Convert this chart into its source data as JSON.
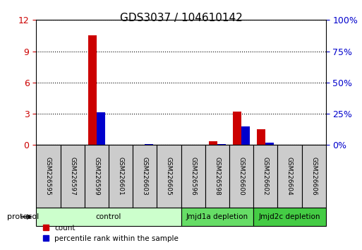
{
  "title": "GDS3037 / 104610142",
  "samples": [
    "GSM226595",
    "GSM226597",
    "GSM226599",
    "GSM226601",
    "GSM226603",
    "GSM226605",
    "GSM226596",
    "GSM226598",
    "GSM226600",
    "GSM226602",
    "GSM226604",
    "GSM226606"
  ],
  "count_values": [
    0,
    0,
    10.5,
    0,
    0,
    0,
    0,
    0.35,
    3.2,
    1.5,
    0,
    0
  ],
  "percentile_values": [
    0,
    0,
    26,
    0,
    1.0,
    0,
    0,
    1.0,
    15,
    2.1,
    0,
    0
  ],
  "left_ylim": [
    0,
    12
  ],
  "left_yticks": [
    0,
    3,
    6,
    9,
    12
  ],
  "right_ylim": [
    0,
    100
  ],
  "right_yticks": [
    0,
    25,
    50,
    75,
    100
  ],
  "right_yticklabels": [
    "0%",
    "25%",
    "50%",
    "75%",
    "100%"
  ],
  "groups": [
    {
      "label": "control",
      "start": 0,
      "end": 6,
      "color": "#ccffcc",
      "text_color": "#000000"
    },
    {
      "label": "Jmjd1a depletion",
      "start": 6,
      "end": 9,
      "color": "#66dd66",
      "text_color": "#000000"
    },
    {
      "label": "Jmjd2c depletion",
      "start": 9,
      "end": 12,
      "color": "#44cc44",
      "text_color": "#000000"
    }
  ],
  "bar_width": 0.35,
  "count_color": "#cc0000",
  "percentile_color": "#0000cc",
  "bg_color": "#ffffff",
  "tick_color_left": "#cc0000",
  "tick_color_right": "#0000cc",
  "legend_count_label": "count",
  "legend_percentile_label": "percentile rank within the sample",
  "sample_box_color": "#cccccc",
  "protocol_label": "protocol"
}
